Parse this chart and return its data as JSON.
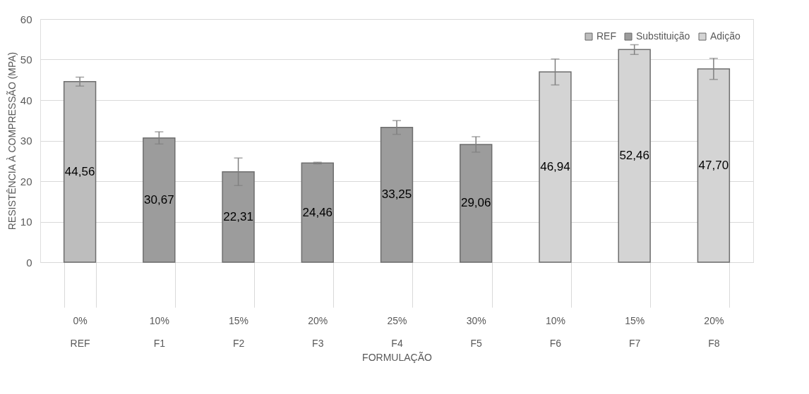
{
  "chart_data": {
    "type": "bar",
    "xlabel": "FORMULAÇÃO",
    "ylabel": "RESISTÊNCIA À COMPRESSÃO (MPA)",
    "categories": [
      "0%\nREF",
      "10%\nF1",
      "15%\nF2",
      "20%\nF3",
      "25%\nF4",
      "30%\nF5",
      "10%\nF6",
      "15%\nF7",
      "20%\nF8"
    ],
    "series": [
      {
        "name": "REF",
        "color": "#bdbdbd",
        "values": [
          44.56,
          null,
          null,
          null,
          null,
          null,
          null,
          null,
          null
        ],
        "errors": [
          1.1,
          null,
          null,
          null,
          null,
          null,
          null,
          null,
          null
        ],
        "value_labels": [
          "44,56",
          null,
          null,
          null,
          null,
          null,
          null,
          null,
          null
        ]
      },
      {
        "name": "Substituição",
        "color": "#9c9c9c",
        "values": [
          null,
          30.67,
          22.31,
          24.46,
          33.25,
          29.06,
          null,
          null,
          null
        ],
        "errors": [
          null,
          1.5,
          3.4,
          0.2,
          1.7,
          1.9,
          null,
          null,
          null
        ],
        "value_labels": [
          null,
          "30,67",
          "22,31",
          "24,46",
          "33,25",
          "29,06",
          null,
          null,
          null
        ]
      },
      {
        "name": "Adição",
        "color": "#d4d4d4",
        "values": [
          null,
          null,
          null,
          null,
          null,
          null,
          46.94,
          52.46,
          47.7
        ],
        "errors": [
          null,
          null,
          null,
          null,
          null,
          null,
          3.2,
          1.2,
          2.6
        ],
        "value_labels": [
          null,
          null,
          null,
          null,
          null,
          null,
          "46,94",
          "52,46",
          "47,70"
        ]
      }
    ],
    "ylim": [
      0,
      60
    ],
    "yticks": [
      0,
      10,
      20,
      30,
      40,
      50,
      60
    ],
    "grid": "y",
    "legend": "top right"
  }
}
